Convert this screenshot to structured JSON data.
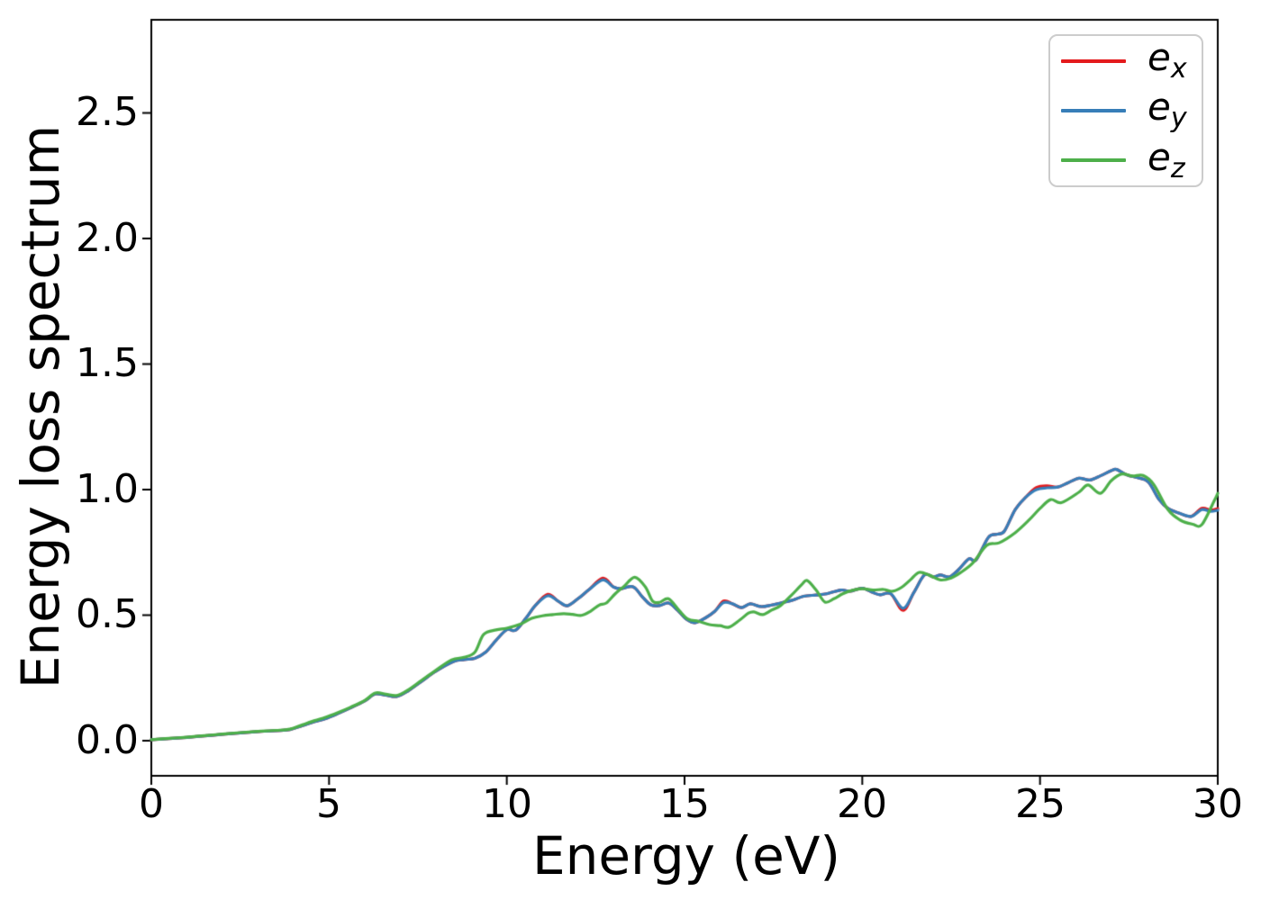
{
  "chart_data": {
    "type": "line",
    "title": "",
    "xlabel": "Energy (eV)",
    "ylabel": "Energy loss spectrum",
    "xlim": [
      0,
      30
    ],
    "ylim": [
      -0.14,
      2.871
    ],
    "grid": false,
    "legend_position": "upper right",
    "frame_color": "#000000",
    "legend_border_color": "#cccccc",
    "xticks": [
      0,
      5,
      10,
      15,
      20,
      25,
      30
    ],
    "xtick_labels": [
      "0",
      "5",
      "10",
      "15",
      "20",
      "25",
      "30"
    ],
    "yticks": [
      0.0,
      0.5,
      1.0,
      1.5,
      2.0,
      2.5
    ],
    "ytick_labels": [
      "0.0",
      "0.5",
      "1.0",
      "1.5",
      "2.0",
      "2.5"
    ],
    "series": [
      {
        "name": "e_x",
        "label_base": "e",
        "label_sub": "x",
        "color": "#e41a1c",
        "points": [
          [
            0,
            0.004
          ],
          [
            0.5,
            0.008
          ],
          [
            1,
            0.013
          ],
          [
            1.5,
            0.019
          ],
          [
            2,
            0.025
          ],
          [
            2.5,
            0.031
          ],
          [
            3,
            0.036
          ],
          [
            3.5,
            0.04
          ],
          [
            3.9,
            0.044
          ],
          [
            4.25,
            0.06
          ],
          [
            4.6,
            0.076
          ],
          [
            4.9,
            0.088
          ],
          [
            5.25,
            0.108
          ],
          [
            5.6,
            0.13
          ],
          [
            6,
            0.158
          ],
          [
            6.3,
            0.186
          ],
          [
            6.6,
            0.181
          ],
          [
            6.9,
            0.176
          ],
          [
            7.2,
            0.196
          ],
          [
            7.6,
            0.236
          ],
          [
            8,
            0.276
          ],
          [
            8.5,
            0.315
          ],
          [
            8.8,
            0.323
          ],
          [
            9.1,
            0.328
          ],
          [
            9.4,
            0.352
          ],
          [
            9.7,
            0.4
          ],
          [
            10,
            0.442
          ],
          [
            10.25,
            0.44
          ],
          [
            10.55,
            0.49
          ],
          [
            10.8,
            0.538
          ],
          [
            11.15,
            0.583
          ],
          [
            11.45,
            0.555
          ],
          [
            11.7,
            0.537
          ],
          [
            12,
            0.565
          ],
          [
            12.3,
            0.6
          ],
          [
            12.7,
            0.647
          ],
          [
            13,
            0.612
          ],
          [
            13.2,
            0.605
          ],
          [
            13.55,
            0.613
          ],
          [
            13.8,
            0.575
          ],
          [
            14.05,
            0.541
          ],
          [
            14.3,
            0.538
          ],
          [
            14.55,
            0.548
          ],
          [
            14.8,
            0.52
          ],
          [
            15.05,
            0.484
          ],
          [
            15.3,
            0.47
          ],
          [
            15.6,
            0.49
          ],
          [
            15.85,
            0.515
          ],
          [
            16.1,
            0.556
          ],
          [
            16.35,
            0.545
          ],
          [
            16.6,
            0.53
          ],
          [
            16.85,
            0.545
          ],
          [
            17.15,
            0.534
          ],
          [
            17.45,
            0.54
          ],
          [
            17.75,
            0.55
          ],
          [
            18.05,
            0.56
          ],
          [
            18.35,
            0.575
          ],
          [
            18.7,
            0.58
          ],
          [
            19,
            0.585
          ],
          [
            19.4,
            0.6
          ],
          [
            19.65,
            0.595
          ],
          [
            20,
            0.607
          ],
          [
            20.3,
            0.59
          ],
          [
            20.5,
            0.581
          ],
          [
            20.8,
            0.585
          ],
          [
            21.15,
            0.519
          ],
          [
            21.45,
            0.59
          ],
          [
            21.75,
            0.66
          ],
          [
            22,
            0.652
          ],
          [
            22.2,
            0.66
          ],
          [
            22.45,
            0.652
          ],
          [
            22.7,
            0.68
          ],
          [
            23,
            0.724
          ],
          [
            23.2,
            0.72
          ],
          [
            23.55,
            0.81
          ],
          [
            23.8,
            0.822
          ],
          [
            24,
            0.835
          ],
          [
            24.3,
            0.92
          ],
          [
            24.6,
            0.97
          ],
          [
            24.9,
            1.008
          ],
          [
            25.2,
            1.015
          ],
          [
            25.5,
            1.01
          ],
          [
            25.8,
            1.028
          ],
          [
            26.1,
            1.045
          ],
          [
            26.4,
            1.038
          ],
          [
            26.7,
            1.055
          ],
          [
            27,
            1.075
          ],
          [
            27.15,
            1.08
          ],
          [
            27.45,
            1.058
          ],
          [
            27.75,
            1.047
          ],
          [
            28.05,
            1.03
          ],
          [
            28.35,
            0.96
          ],
          [
            28.6,
            0.925
          ],
          [
            28.9,
            0.907
          ],
          [
            29.25,
            0.893
          ],
          [
            29.55,
            0.925
          ],
          [
            29.8,
            0.918
          ],
          [
            30,
            0.924
          ]
        ]
      },
      {
        "name": "e_y",
        "label_base": "e",
        "label_sub": "y",
        "color": "#377eb8",
        "points": [
          [
            0,
            0.004
          ],
          [
            0.5,
            0.008
          ],
          [
            1,
            0.013
          ],
          [
            1.5,
            0.019
          ],
          [
            2,
            0.025
          ],
          [
            2.5,
            0.031
          ],
          [
            3,
            0.036
          ],
          [
            3.5,
            0.04
          ],
          [
            3.9,
            0.044
          ],
          [
            4.25,
            0.06
          ],
          [
            4.6,
            0.076
          ],
          [
            4.9,
            0.088
          ],
          [
            5.25,
            0.108
          ],
          [
            5.6,
            0.13
          ],
          [
            6,
            0.158
          ],
          [
            6.3,
            0.186
          ],
          [
            6.6,
            0.181
          ],
          [
            6.9,
            0.176
          ],
          [
            7.2,
            0.196
          ],
          [
            7.6,
            0.236
          ],
          [
            8,
            0.276
          ],
          [
            8.5,
            0.315
          ],
          [
            8.8,
            0.323
          ],
          [
            9.1,
            0.328
          ],
          [
            9.4,
            0.352
          ],
          [
            9.7,
            0.4
          ],
          [
            10,
            0.442
          ],
          [
            10.25,
            0.44
          ],
          [
            10.55,
            0.49
          ],
          [
            10.8,
            0.538
          ],
          [
            11.15,
            0.577
          ],
          [
            11.45,
            0.555
          ],
          [
            11.7,
            0.537
          ],
          [
            12,
            0.565
          ],
          [
            12.3,
            0.6
          ],
          [
            12.7,
            0.64
          ],
          [
            13,
            0.612
          ],
          [
            13.2,
            0.605
          ],
          [
            13.55,
            0.613
          ],
          [
            13.8,
            0.575
          ],
          [
            14.05,
            0.541
          ],
          [
            14.3,
            0.538
          ],
          [
            14.55,
            0.548
          ],
          [
            14.8,
            0.52
          ],
          [
            15.05,
            0.484
          ],
          [
            15.3,
            0.47
          ],
          [
            15.6,
            0.49
          ],
          [
            15.85,
            0.515
          ],
          [
            16.1,
            0.55
          ],
          [
            16.35,
            0.545
          ],
          [
            16.6,
            0.53
          ],
          [
            16.85,
            0.545
          ],
          [
            17.15,
            0.534
          ],
          [
            17.45,
            0.54
          ],
          [
            17.75,
            0.55
          ],
          [
            18.05,
            0.56
          ],
          [
            18.35,
            0.575
          ],
          [
            18.7,
            0.58
          ],
          [
            19,
            0.585
          ],
          [
            19.4,
            0.6
          ],
          [
            19.65,
            0.595
          ],
          [
            20,
            0.607
          ],
          [
            20.3,
            0.59
          ],
          [
            20.5,
            0.581
          ],
          [
            20.8,
            0.585
          ],
          [
            21.15,
            0.527
          ],
          [
            21.45,
            0.59
          ],
          [
            21.75,
            0.66
          ],
          [
            22,
            0.652
          ],
          [
            22.2,
            0.66
          ],
          [
            22.45,
            0.652
          ],
          [
            22.7,
            0.68
          ],
          [
            23,
            0.724
          ],
          [
            23.2,
            0.72
          ],
          [
            23.55,
            0.81
          ],
          [
            23.8,
            0.822
          ],
          [
            24,
            0.835
          ],
          [
            24.3,
            0.92
          ],
          [
            24.6,
            0.97
          ],
          [
            24.9,
            1.0
          ],
          [
            25.2,
            1.007
          ],
          [
            25.5,
            1.01
          ],
          [
            25.8,
            1.028
          ],
          [
            26.1,
            1.045
          ],
          [
            26.4,
            1.038
          ],
          [
            26.7,
            1.055
          ],
          [
            27,
            1.075
          ],
          [
            27.15,
            1.08
          ],
          [
            27.45,
            1.058
          ],
          [
            27.75,
            1.047
          ],
          [
            28.05,
            1.03
          ],
          [
            28.35,
            0.96
          ],
          [
            28.6,
            0.925
          ],
          [
            28.9,
            0.907
          ],
          [
            29.25,
            0.893
          ],
          [
            29.55,
            0.92
          ],
          [
            29.8,
            0.913
          ],
          [
            30,
            0.918
          ]
        ]
      },
      {
        "name": "e_z",
        "label_base": "e",
        "label_sub": "z",
        "color": "#4daf4a",
        "points": [
          [
            0,
            0.004
          ],
          [
            0.5,
            0.009
          ],
          [
            1,
            0.014
          ],
          [
            1.5,
            0.02
          ],
          [
            2,
            0.026
          ],
          [
            2.5,
            0.032
          ],
          [
            3,
            0.037
          ],
          [
            3.5,
            0.041
          ],
          [
            3.9,
            0.046
          ],
          [
            4.25,
            0.063
          ],
          [
            4.6,
            0.08
          ],
          [
            4.9,
            0.093
          ],
          [
            5.25,
            0.112
          ],
          [
            5.6,
            0.133
          ],
          [
            6,
            0.16
          ],
          [
            6.3,
            0.19
          ],
          [
            6.6,
            0.185
          ],
          [
            6.9,
            0.18
          ],
          [
            7.2,
            0.2
          ],
          [
            7.6,
            0.24
          ],
          [
            8,
            0.28
          ],
          [
            8.45,
            0.322
          ],
          [
            8.8,
            0.332
          ],
          [
            9.1,
            0.352
          ],
          [
            9.35,
            0.423
          ],
          [
            9.7,
            0.441
          ],
          [
            10,
            0.448
          ],
          [
            10.4,
            0.465
          ],
          [
            10.7,
            0.487
          ],
          [
            11,
            0.497
          ],
          [
            11.3,
            0.502
          ],
          [
            11.6,
            0.506
          ],
          [
            11.85,
            0.503
          ],
          [
            12.1,
            0.499
          ],
          [
            12.35,
            0.515
          ],
          [
            12.6,
            0.54
          ],
          [
            12.8,
            0.548
          ],
          [
            13.05,
            0.585
          ],
          [
            13.3,
            0.615
          ],
          [
            13.6,
            0.651
          ],
          [
            13.9,
            0.612
          ],
          [
            14.1,
            0.556
          ],
          [
            14.3,
            0.551
          ],
          [
            14.55,
            0.565
          ],
          [
            14.85,
            0.518
          ],
          [
            15.1,
            0.484
          ],
          [
            15.4,
            0.475
          ],
          [
            15.7,
            0.462
          ],
          [
            16,
            0.458
          ],
          [
            16.25,
            0.452
          ],
          [
            16.55,
            0.48
          ],
          [
            16.8,
            0.508
          ],
          [
            16.95,
            0.513
          ],
          [
            17.2,
            0.502
          ],
          [
            17.45,
            0.52
          ],
          [
            17.7,
            0.538
          ],
          [
            18,
            0.578
          ],
          [
            18.3,
            0.622
          ],
          [
            18.45,
            0.638
          ],
          [
            18.7,
            0.6
          ],
          [
            18.95,
            0.552
          ],
          [
            19.2,
            0.565
          ],
          [
            19.45,
            0.585
          ],
          [
            19.7,
            0.598
          ],
          [
            20,
            0.605
          ],
          [
            20.3,
            0.6
          ],
          [
            20.6,
            0.602
          ],
          [
            20.85,
            0.595
          ],
          [
            21.1,
            0.61
          ],
          [
            21.35,
            0.64
          ],
          [
            21.6,
            0.67
          ],
          [
            21.9,
            0.658
          ],
          [
            22.2,
            0.64
          ],
          [
            22.5,
            0.648
          ],
          [
            22.75,
            0.668
          ],
          [
            23.1,
            0.706
          ],
          [
            23.5,
            0.778
          ],
          [
            23.85,
            0.788
          ],
          [
            24.3,
            0.828
          ],
          [
            24.7,
            0.88
          ],
          [
            25,
            0.925
          ],
          [
            25.3,
            0.96
          ],
          [
            25.6,
            0.948
          ],
          [
            26.1,
            0.99
          ],
          [
            26.35,
            1.018
          ],
          [
            26.7,
            0.985
          ],
          [
            27,
            1.035
          ],
          [
            27.3,
            1.062
          ],
          [
            27.6,
            1.054
          ],
          [
            27.9,
            1.056
          ],
          [
            28.2,
            1.02
          ],
          [
            28.6,
            0.92
          ],
          [
            28.95,
            0.878
          ],
          [
            29.3,
            0.862
          ],
          [
            29.55,
            0.86
          ],
          [
            29.9,
            0.955
          ],
          [
            30,
            0.985
          ]
        ]
      }
    ]
  }
}
